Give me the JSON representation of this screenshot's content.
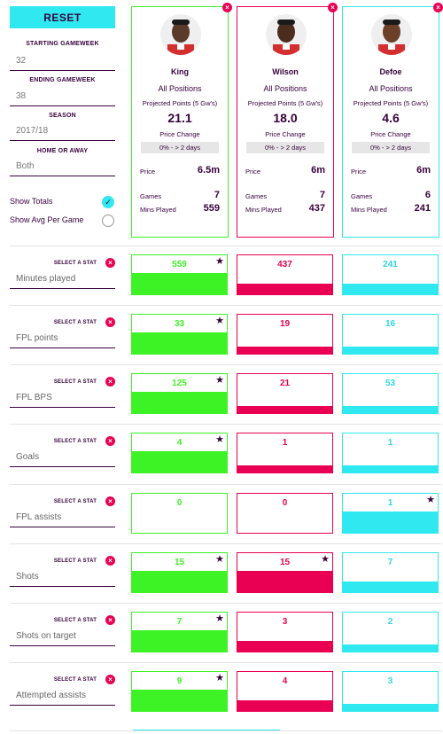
{
  "filters": {
    "reset_label": "RESET",
    "starting_gameweek_label": "STARTING GAMEWEEK",
    "starting_gameweek": "32",
    "ending_gameweek_label": "ENDING GAMEWEEK",
    "ending_gameweek": "38",
    "season_label": "SEASON",
    "season": "2017/18",
    "home_away_label": "HOME OR AWAY",
    "home_away": "Both",
    "show_totals": "Show Totals",
    "show_avg": "Show Avg Per Game"
  },
  "colors": {
    "green": "#3df225",
    "red": "#e90052",
    "cyan": "#2fe8f0",
    "purple": "#37003c"
  },
  "players": [
    {
      "name": "King",
      "position": "All Positions",
      "projected_label": "Projected Points (5 Gw's)",
      "projected": "21.1",
      "price_change_label": "Price Change",
      "price_change": "0% - > 2 days",
      "price_label": "Price",
      "price": "6.5m",
      "games_label": "Games",
      "games": "7",
      "mins_label": "Mins Played",
      "mins": "559"
    },
    {
      "name": "Wilson",
      "position": "All Positions",
      "projected_label": "Projected Points (5 Gw's)",
      "projected": "18.0",
      "price_change_label": "Price Change",
      "price_change": "0% - > 2 days",
      "price_label": "Price",
      "price": "6m",
      "games_label": "Games",
      "games": "7",
      "mins_label": "Mins Played",
      "mins": "437"
    },
    {
      "name": "Defoe",
      "position": "All Positions",
      "projected_label": "Projected Points (5 Gw's)",
      "projected": "4.6",
      "price_change_label": "Price Change",
      "price_change": "0% - > 2 days",
      "price_label": "Price",
      "price": "6m",
      "games_label": "Games",
      "games": "6",
      "mins_label": "Mins Played",
      "mins": "241"
    }
  ],
  "select_stat_label": "SELECT A STAT",
  "stats": [
    {
      "name": "Minutes played",
      "values": [
        "559",
        "437",
        "241"
      ],
      "fill": [
        0.55,
        0.27,
        0.27
      ],
      "best": [
        true,
        false,
        false
      ]
    },
    {
      "name": "FPL points",
      "values": [
        "33",
        "19",
        "16"
      ],
      "fill": [
        0.55,
        0.18,
        0.18
      ],
      "best": [
        true,
        false,
        false
      ]
    },
    {
      "name": "FPL BPS",
      "values": [
        "125",
        "21",
        "53"
      ],
      "fill": [
        0.55,
        0.18,
        0.18
      ],
      "best": [
        true,
        false,
        false
      ]
    },
    {
      "name": "Goals",
      "values": [
        "4",
        "1",
        "1"
      ],
      "fill": [
        0.55,
        0.18,
        0.18
      ],
      "best": [
        true,
        false,
        false
      ]
    },
    {
      "name": "FPL assists",
      "values": [
        "0",
        "0",
        "1"
      ],
      "fill": [
        0,
        0,
        0.55
      ],
      "best": [
        false,
        false,
        true
      ]
    },
    {
      "name": "Shots",
      "values": [
        "15",
        "15",
        "7"
      ],
      "fill": [
        0.55,
        0.55,
        0.27
      ],
      "best": [
        true,
        true,
        false
      ]
    },
    {
      "name": "Shots on target",
      "values": [
        "7",
        "3",
        "2"
      ],
      "fill": [
        0.55,
        0.27,
        0.18
      ],
      "best": [
        true,
        false,
        false
      ]
    },
    {
      "name": "Attempted assists",
      "values": [
        "9",
        "4",
        "3"
      ],
      "fill": [
        0.55,
        0.27,
        0.18
      ],
      "best": [
        true,
        false,
        false
      ]
    }
  ]
}
